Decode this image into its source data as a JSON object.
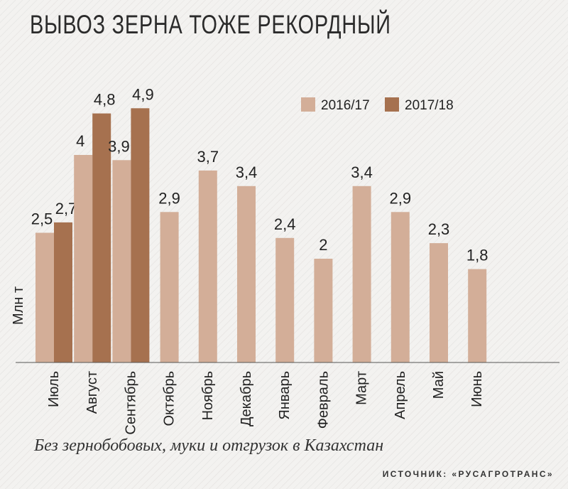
{
  "header": {
    "title": "ВЫВОЗ ЗЕРНА ТОЖЕ РЕКОРДНЫЙ"
  },
  "chart_data": {
    "type": "bar",
    "title": "ВЫВОЗ ЗЕРНА ТОЖЕ РЕКОРДНЫЙ",
    "ylabel": "Млн т",
    "xlabel": "",
    "ylim": [
      0,
      5.4
    ],
    "grid": false,
    "legend_position": "top-right",
    "categories": [
      "Июль",
      "Август",
      "Сентябрь",
      "Октябрь",
      "Ноябрь",
      "Декабрь",
      "Январь",
      "Февраль",
      "Март",
      "Апрель",
      "Май",
      "Июнь"
    ],
    "series": [
      {
        "name": "2016/17",
        "color": "#d3ae98",
        "values": [
          2.5,
          4,
          3.9,
          2.9,
          3.7,
          3.4,
          2.4,
          2,
          3.4,
          2.9,
          2.3,
          1.8
        ]
      },
      {
        "name": "2017/18",
        "color": "#a6714f",
        "values": [
          2.7,
          4.8,
          4.9,
          null,
          null,
          null,
          null,
          null,
          null,
          null,
          null,
          null
        ]
      }
    ],
    "value_labels": {
      "2016/17": [
        "2,5",
        "4",
        "3,9",
        "2,9",
        "3,7",
        "3,4",
        "2,4",
        "2",
        "3,4",
        "2,9",
        "2,3",
        "1,8"
      ],
      "2017/18": [
        "2,7",
        "4,8",
        "4,9",
        "",
        "",
        "",
        "",
        "",
        "",
        "",
        "",
        ""
      ]
    }
  },
  "footer": {
    "note": "Без зернобобовых, муки и отгрузок в Казахстан",
    "source": "ИСТОЧНИК: «РУСАГРОТРАНС»"
  }
}
